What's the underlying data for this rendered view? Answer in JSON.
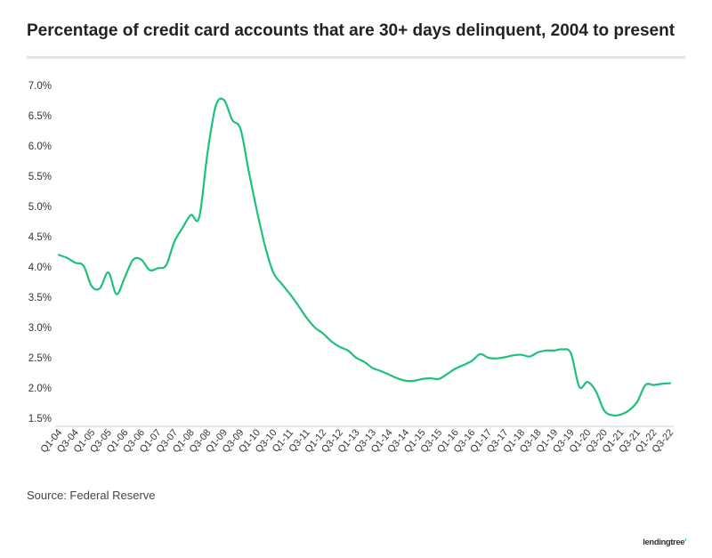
{
  "title": "Percentage of credit card accounts that are 30+ days delinquent, 2004 to present",
  "source": "Source: Federal Reserve",
  "logo": "lendingtree",
  "colors": {
    "line": "#1ec17a",
    "axis": "#cccccc",
    "text": "#333333"
  },
  "chart_data": {
    "type": "line",
    "title": "Percentage of credit card accounts that are 30+ days delinquent, 2004 to present",
    "xlabel": "",
    "ylabel": "",
    "ylim": [
      1.5,
      7.0
    ],
    "y_ticks": [
      "7.0%",
      "6.5%",
      "6.0%",
      "5.5%",
      "5.0%",
      "4.5%",
      "4.0%",
      "3.5%",
      "3.0%",
      "2.5%",
      "2.0%",
      "1.5%"
    ],
    "x_tick_labels": [
      "Q1-04",
      "Q3-04",
      "Q1-05",
      "Q3-05",
      "Q1-06",
      "Q3-06",
      "Q1-07",
      "Q3-07",
      "Q1-08",
      "Q3-08",
      "Q1-09",
      "Q3-09",
      "Q1-10",
      "Q3-10",
      "Q1-11",
      "Q3-11",
      "Q1-12",
      "Q3-12",
      "Q1-13",
      "Q3-13",
      "Q1-14",
      "Q3-14",
      "Q1-15",
      "Q3-15",
      "Q1-16",
      "Q3-16",
      "Q1-17",
      "Q3-17",
      "Q1-18",
      "Q3-18",
      "Q1-19",
      "Q3-19",
      "Q1-20",
      "Q3-20",
      "Q1-21",
      "Q3-21",
      "Q1-22",
      "Q3-22"
    ],
    "grid": false,
    "legend": "none",
    "series": [
      {
        "x": [
          "Q1-04",
          "Q2-04",
          "Q3-04",
          "Q4-04",
          "Q1-05",
          "Q2-05",
          "Q3-05",
          "Q4-05",
          "Q1-06",
          "Q2-06",
          "Q3-06",
          "Q4-06",
          "Q1-07",
          "Q2-07",
          "Q3-07",
          "Q4-07",
          "Q1-08",
          "Q2-08",
          "Q3-08",
          "Q4-08",
          "Q1-09",
          "Q2-09",
          "Q3-09",
          "Q4-09",
          "Q1-10",
          "Q2-10",
          "Q3-10",
          "Q4-10",
          "Q1-11",
          "Q2-11",
          "Q3-11",
          "Q4-11",
          "Q1-12",
          "Q2-12",
          "Q3-12",
          "Q4-12",
          "Q1-13",
          "Q2-13",
          "Q3-13",
          "Q4-13",
          "Q1-14",
          "Q2-14",
          "Q3-14",
          "Q4-14",
          "Q1-15",
          "Q2-15",
          "Q3-15",
          "Q4-15",
          "Q1-16",
          "Q2-16",
          "Q3-16",
          "Q4-16",
          "Q1-17",
          "Q2-17",
          "Q3-17",
          "Q4-17",
          "Q1-18",
          "Q2-18",
          "Q3-18",
          "Q4-18",
          "Q1-19",
          "Q2-19",
          "Q3-19",
          "Q4-19",
          "Q1-20",
          "Q2-20",
          "Q3-20",
          "Q4-20",
          "Q1-21",
          "Q2-21",
          "Q3-21",
          "Q4-21",
          "Q1-22",
          "Q2-22",
          "Q3-22"
        ],
        "values": [
          4.2,
          4.15,
          4.07,
          4.02,
          3.68,
          3.65,
          3.91,
          3.55,
          3.83,
          4.12,
          4.12,
          3.95,
          3.98,
          4.03,
          4.42,
          4.65,
          4.86,
          4.82,
          5.88,
          6.66,
          6.76,
          6.43,
          6.28,
          5.58,
          4.92,
          4.33,
          3.9,
          3.72,
          3.55,
          3.36,
          3.16,
          3.0,
          2.9,
          2.77,
          2.68,
          2.62,
          2.5,
          2.43,
          2.33,
          2.28,
          2.22,
          2.16,
          2.12,
          2.12,
          2.15,
          2.16,
          2.15,
          2.23,
          2.32,
          2.38,
          2.45,
          2.56,
          2.5,
          2.49,
          2.51,
          2.54,
          2.55,
          2.52,
          2.59,
          2.62,
          2.62,
          2.64,
          2.57,
          2.02,
          2.1,
          1.95,
          1.63,
          1.55,
          1.56,
          1.63,
          1.77,
          2.05,
          2.05,
          2.07,
          2.08
        ]
      }
    ]
  }
}
